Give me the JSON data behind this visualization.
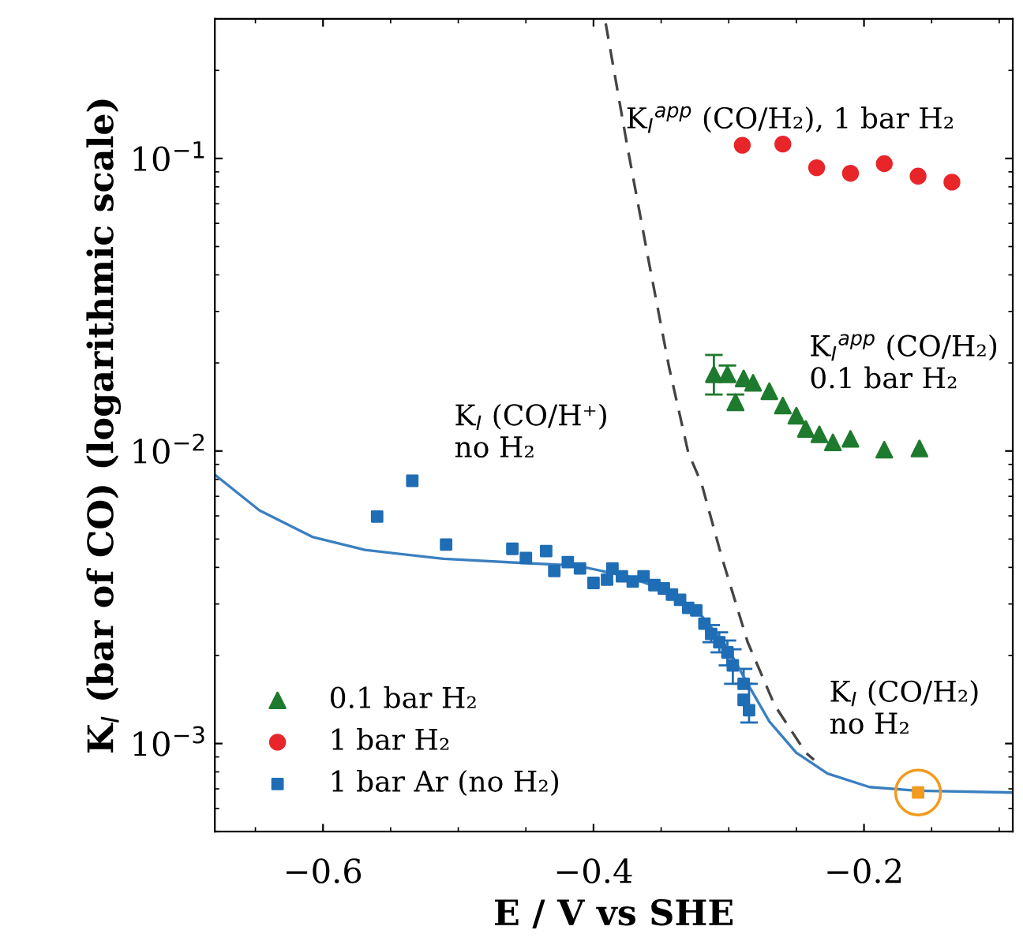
{
  "chart_data": {
    "type": "scatter",
    "xlabel": "E / V vs SHE",
    "ylabel": "K$_{I}$ (bar of CO) (logarithmic scale)",
    "log": "y",
    "xlim": [
      -0.68,
      -0.09
    ],
    "ylim": [
      0.0005,
      0.3
    ],
    "xticks": [
      {
        "value": -0.6,
        "label": "−0.6"
      },
      {
        "value": -0.4,
        "label": "−0.4"
      },
      {
        "value": -0.2,
        "label": "−0.2"
      }
    ],
    "yticks": [
      {
        "value": 0.001,
        "label": "10$^{−3}$"
      },
      {
        "value": 0.01,
        "label": "10$^{−2}$"
      },
      {
        "value": 0.1,
        "label": "10$^{−1}$"
      }
    ],
    "grid": false,
    "legend": "bottom left",
    "series": [
      {
        "name": "0.1 bar H₂",
        "color": "#1e7a2e",
        "marker": "triangle",
        "x": [
          -0.311,
          -0.301,
          -0.289,
          -0.282,
          -0.295,
          -0.27,
          -0.26,
          -0.25,
          -0.243,
          -0.233,
          -0.223,
          -0.21,
          -0.185,
          -0.159
        ],
        "values": [
          0.0183,
          0.0183,
          0.0177,
          0.0171,
          0.0147,
          0.016,
          0.0143,
          0.0132,
          0.0119,
          0.0114,
          0.0107,
          0.011,
          0.0101,
          0.0102
        ],
        "errors": [
          [
            0.0156,
            0.0213
          ],
          [
            0.0173,
            0.0196
          ],
          null,
          null,
          [
            0.0138,
            0.0156
          ],
          null,
          null,
          null,
          null,
          null,
          null,
          null,
          null,
          null
        ]
      },
      {
        "name": "1 bar H₂",
        "color": "#e8262a",
        "marker": "circle",
        "x": [
          -0.29,
          -0.26,
          -0.235,
          -0.21,
          -0.185,
          -0.16,
          -0.135
        ],
        "values": [
          0.111,
          0.112,
          0.093,
          0.089,
          0.096,
          0.087,
          0.083
        ]
      },
      {
        "name": "1 bar Ar (no H₂)",
        "color": "#1f6db5",
        "marker": "square",
        "x": [
          -0.56,
          -0.534,
          -0.509,
          -0.46,
          -0.45,
          -0.435,
          -0.429,
          -0.419,
          -0.41,
          -0.4,
          -0.39,
          -0.386,
          -0.379,
          -0.371,
          -0.363,
          -0.355,
          -0.348,
          -0.342,
          -0.336,
          -0.33,
          -0.324,
          -0.318,
          -0.313,
          -0.307,
          -0.301,
          -0.297,
          -0.289,
          -0.289,
          -0.285
        ],
        "values": [
          0.00597,
          0.00791,
          0.00479,
          0.00463,
          0.00431,
          0.00455,
          0.00389,
          0.00417,
          0.00397,
          0.00354,
          0.00363,
          0.00397,
          0.00373,
          0.00358,
          0.00373,
          0.00348,
          0.00339,
          0.00323,
          0.0031,
          0.00291,
          0.00285,
          0.00257,
          0.00237,
          0.00222,
          0.00205,
          0.00185,
          0.0016,
          0.00141,
          0.0013
        ],
        "errors": [
          null,
          null,
          null,
          null,
          null,
          null,
          null,
          null,
          null,
          null,
          null,
          null,
          null,
          null,
          null,
          null,
          null,
          null,
          null,
          null,
          null,
          null,
          [
            0.00222,
            0.00254
          ],
          [
            0.00205,
            0.0024
          ],
          [
            0.00185,
            0.00225
          ],
          [
            0.0016,
            0.0021
          ],
          [
            0.0016,
            0.0018
          ],
          null,
          [
            0.00118,
            0.0016
          ]
        ]
      },
      {
        "color": "#f29b1e",
        "marker": "square",
        "x": [
          -0.16
        ],
        "values": [
          0.00068
        ]
      },
      {
        "type": "line",
        "color": "#3a7fc0",
        "line_style": "solid",
        "x": [
          -0.68,
          -0.647,
          -0.608,
          -0.569,
          -0.511,
          -0.452,
          -0.413,
          -0.375,
          -0.344,
          -0.32,
          -0.301,
          -0.286,
          -0.27,
          -0.25,
          -0.227,
          -0.196,
          -0.161,
          -0.09
        ],
        "values": [
          0.0083,
          0.00627,
          0.00509,
          0.00459,
          0.00428,
          0.00414,
          0.00406,
          0.00373,
          0.0033,
          0.00273,
          0.00213,
          0.0016,
          0.00119,
          0.00093,
          0.00079,
          0.00071,
          0.00069,
          0.00068
        ]
      },
      {
        "type": "line",
        "color": "#444444",
        "line_style": "dashed",
        "x": [
          -0.391,
          -0.375,
          -0.359,
          -0.344,
          -0.33,
          -0.32,
          -0.305,
          -0.286,
          -0.266,
          -0.243,
          -0.237
        ],
        "values": [
          0.29,
          0.11,
          0.0441,
          0.0192,
          0.0099,
          0.00771,
          0.00431,
          0.00222,
          0.00135,
          0.00093,
          0.00088
        ]
      }
    ],
    "annotations": [
      "K$_{I}$$^{app}$ (CO/H₂), 1 bar H₂",
      "K$_{I}$$^{app}$ (CO/H₂)\n0.1 bar H₂",
      "K$_{I}$ (CO/H⁺)\nno H₂",
      "K$_{I}$ (CO/H₂)\nno H₂"
    ]
  }
}
